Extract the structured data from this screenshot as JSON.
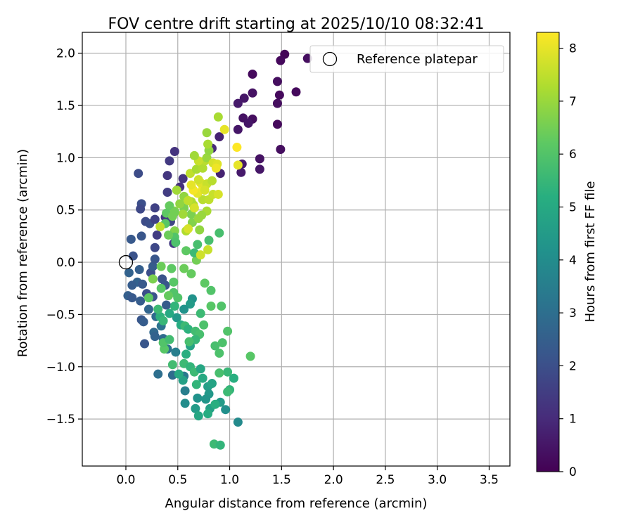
{
  "chart_data": {
    "type": "scatter",
    "title": "FOV centre drift starting at 2025/10/10 08:32:41",
    "xlabel": "Angular distance from reference (arcmin)",
    "ylabel": "Rotation from reference (arcmin)",
    "xlim": [
      -0.42,
      3.7
    ],
    "ylim": [
      -1.95,
      2.2
    ],
    "xticks": [
      0.0,
      0.5,
      1.0,
      1.5,
      2.0,
      2.5,
      3.0,
      3.5
    ],
    "xtick_labels": [
      "0.0",
      "0.5",
      "1.0",
      "1.5",
      "2.0",
      "2.5",
      "3.0",
      "3.5"
    ],
    "yticks": [
      -1.5,
      -1.0,
      -0.5,
      0.0,
      0.5,
      1.0,
      1.5,
      2.0
    ],
    "ytick_labels": [
      "−1.5",
      "−1.0",
      "−0.5",
      "0.0",
      "0.5",
      "1.0",
      "1.5",
      "2.0"
    ],
    "grid": true,
    "legend": {
      "position": "top-right",
      "entries": [
        "Reference platepar"
      ]
    },
    "reference_point": {
      "x": 0.0,
      "y": 0.0
    },
    "colorbar": {
      "label": "Hours from first FF file",
      "min": 0,
      "max": 8.3,
      "ticks": [
        0,
        1,
        2,
        3,
        4,
        5,
        6,
        7,
        8
      ],
      "tick_labels": [
        "0",
        "1",
        "2",
        "3",
        "4",
        "5",
        "6",
        "7",
        "8"
      ],
      "colormap": "viridis"
    },
    "points": [
      [
        1.53,
        1.99,
        0.1
      ],
      [
        1.49,
        1.93,
        0.2
      ],
      [
        1.75,
        1.95,
        0.3
      ],
      [
        1.22,
        1.8,
        0.2
      ],
      [
        1.46,
        1.73,
        0.3
      ],
      [
        1.64,
        1.63,
        0.2
      ],
      [
        1.22,
        1.62,
        0.4
      ],
      [
        1.48,
        1.6,
        0.2
      ],
      [
        1.14,
        1.57,
        0.5
      ],
      [
        1.08,
        1.52,
        0.6
      ],
      [
        1.46,
        1.52,
        0.3
      ],
      [
        1.13,
        1.38,
        0.4
      ],
      [
        1.22,
        1.37,
        0.3
      ],
      [
        1.18,
        1.33,
        0.5
      ],
      [
        1.46,
        1.32,
        0.2
      ],
      [
        1.08,
        1.27,
        0.5
      ],
      [
        0.9,
        1.2,
        0.8
      ],
      [
        0.83,
        1.09,
        1.0
      ],
      [
        1.49,
        1.08,
        0.3
      ],
      [
        0.47,
        1.06,
        1.2
      ],
      [
        1.29,
        0.99,
        0.4
      ],
      [
        0.42,
        0.97,
        1.4
      ],
      [
        1.12,
        0.94,
        0.6
      ],
      [
        1.29,
        0.89,
        0.5
      ],
      [
        0.12,
        0.85,
        1.9
      ],
      [
        1.11,
        0.86,
        0.6
      ],
      [
        0.4,
        0.83,
        1.3
      ],
      [
        0.91,
        0.85,
        0.8
      ],
      [
        0.55,
        0.8,
        1.2
      ],
      [
        0.52,
        0.72,
        1.1
      ],
      [
        0.4,
        0.67,
        1.5
      ],
      [
        0.15,
        0.56,
        2.0
      ],
      [
        0.14,
        0.51,
        1.8
      ],
      [
        0.28,
        0.52,
        1.6
      ],
      [
        0.38,
        0.43,
        1.3
      ],
      [
        0.19,
        0.39,
        1.9
      ],
      [
        0.23,
        0.37,
        2.0
      ],
      [
        0.28,
        0.41,
        1.6
      ],
      [
        0.43,
        0.39,
        1.7
      ],
      [
        0.3,
        0.26,
        1.5
      ],
      [
        0.15,
        0.25,
        2.2
      ],
      [
        0.05,
        0.22,
        2.3
      ],
      [
        0.46,
        0.18,
        1.4
      ],
      [
        0.28,
        0.14,
        1.8
      ],
      [
        0.07,
        0.06,
        2.1
      ],
      [
        0.03,
        -0.1,
        2.6
      ],
      [
        0.13,
        -0.07,
        2.5
      ],
      [
        0.24,
        -0.1,
        2.0
      ],
      [
        0.26,
        -0.04,
        2.4
      ],
      [
        0.28,
        0.03,
        2.2
      ],
      [
        0.11,
        -0.19,
        2.6
      ],
      [
        0.16,
        -0.21,
        2.3
      ],
      [
        0.06,
        -0.22,
        2.4
      ],
      [
        0.35,
        -0.16,
        2.1
      ],
      [
        0.38,
        -0.22,
        2.2
      ],
      [
        0.02,
        -0.32,
        2.5
      ],
      [
        0.06,
        -0.34,
        2.3
      ],
      [
        0.2,
        -0.3,
        2.0
      ],
      [
        0.26,
        -0.33,
        2.1
      ],
      [
        0.14,
        -0.37,
        2.4
      ],
      [
        0.22,
        -0.45,
        2.7
      ],
      [
        0.39,
        -0.41,
        2.4
      ],
      [
        0.29,
        -0.52,
        2.9
      ],
      [
        0.15,
        -0.55,
        2.2
      ],
      [
        0.17,
        -0.57,
        2.4
      ],
      [
        0.34,
        -0.61,
        3.1
      ],
      [
        0.27,
        -0.67,
        2.8
      ],
      [
        0.36,
        -0.73,
        2.9
      ],
      [
        0.28,
        -0.71,
        2.6
      ],
      [
        0.18,
        -0.78,
        2.2
      ],
      [
        0.48,
        -0.86,
        3.5
      ],
      [
        0.4,
        -0.83,
        3.1
      ],
      [
        0.31,
        -1.07,
        3.0
      ],
      [
        0.45,
        -1.08,
        2.9
      ],
      [
        0.56,
        -1.09,
        3.3
      ],
      [
        0.57,
        -1.23,
        3.5
      ],
      [
        0.57,
        -1.35,
        4.0
      ],
      [
        0.69,
        -1.3,
        4.2
      ],
      [
        0.67,
        -1.4,
        4.5
      ],
      [
        0.7,
        -1.47,
        4.9
      ],
      [
        0.81,
        -1.4,
        4.7
      ],
      [
        0.79,
        -1.45,
        5.1
      ],
      [
        0.85,
        -1.74,
        5.6
      ],
      [
        0.91,
        -1.75,
        5.4
      ],
      [
        1.08,
        -1.53,
        3.9
      ],
      [
        0.96,
        -1.41,
        4.1
      ],
      [
        0.91,
        -1.34,
        4.5
      ],
      [
        0.86,
        -1.36,
        5.2
      ],
      [
        1.0,
        -1.22,
        5.4
      ],
      [
        0.98,
        -1.24,
        5.6
      ],
      [
        1.04,
        -1.11,
        5.2
      ],
      [
        0.98,
        -1.05,
        5.5
      ],
      [
        0.9,
        -1.06,
        5.8
      ],
      [
        0.9,
        -0.87,
        5.9
      ],
      [
        0.86,
        -0.8,
        5.8
      ],
      [
        0.93,
        -0.77,
        5.9
      ],
      [
        0.98,
        -0.66,
        6.0
      ],
      [
        1.2,
        -0.9,
        6.1
      ],
      [
        0.92,
        -0.42,
        6.0
      ],
      [
        0.82,
        -0.42,
        6.1
      ],
      [
        0.82,
        -0.27,
        6.0
      ],
      [
        0.76,
        -0.2,
        6.2
      ],
      [
        0.63,
        -0.11,
        6.3
      ],
      [
        0.56,
        -0.06,
        6.4
      ],
      [
        0.68,
        0.02,
        6.5
      ],
      [
        0.44,
        -0.06,
        6.2
      ],
      [
        0.34,
        -0.04,
        6.4
      ],
      [
        0.26,
        -0.16,
        6.6
      ],
      [
        0.34,
        -0.25,
        6.1
      ],
      [
        0.46,
        -0.19,
        6.1
      ],
      [
        0.46,
        -0.29,
        6.0
      ],
      [
        0.41,
        -0.32,
        6.3
      ],
      [
        0.5,
        -0.34,
        6.0
      ],
      [
        0.64,
        -0.35,
        4.2
      ],
      [
        0.62,
        -0.4,
        4.5
      ],
      [
        0.56,
        -0.45,
        4.2
      ],
      [
        0.49,
        -0.53,
        4.4
      ],
      [
        0.42,
        -0.49,
        5.0
      ],
      [
        0.33,
        -0.52,
        5.3
      ],
      [
        0.36,
        -0.56,
        5.5
      ],
      [
        0.53,
        -0.6,
        5.1
      ],
      [
        0.57,
        -0.61,
        5.6
      ],
      [
        0.6,
        -0.64,
        5.3
      ],
      [
        0.67,
        -0.66,
        5.7
      ],
      [
        0.75,
        -0.6,
        5.9
      ],
      [
        0.71,
        -0.69,
        5.8
      ],
      [
        0.67,
        -0.74,
        5.5
      ],
      [
        0.62,
        -0.8,
        4.8
      ],
      [
        0.58,
        -0.88,
        5.2
      ],
      [
        0.56,
        -0.97,
        5.6
      ],
      [
        0.62,
        -1.0,
        5.4
      ],
      [
        0.66,
        -1.05,
        5.6
      ],
      [
        0.72,
        -1.02,
        4.9
      ],
      [
        0.74,
        -1.11,
        5.0
      ],
      [
        0.68,
        -1.17,
        5.4
      ],
      [
        0.79,
        -1.19,
        4.6
      ],
      [
        0.83,
        -1.16,
        4.8
      ],
      [
        0.8,
        -1.26,
        4.4
      ],
      [
        0.77,
        -1.31,
        4.3
      ],
      [
        0.55,
        -1.13,
        4.7
      ],
      [
        0.51,
        -1.07,
        5.0
      ],
      [
        0.45,
        -0.98,
        5.7
      ],
      [
        0.37,
        -0.83,
        6.1
      ],
      [
        0.36,
        -0.77,
        6.0
      ],
      [
        0.42,
        -0.74,
        5.7
      ],
      [
        0.61,
        -0.76,
        5.8
      ],
      [
        0.22,
        -0.34,
        6.2
      ],
      [
        0.31,
        -0.45,
        5.6
      ],
      [
        0.47,
        -0.42,
        5.4
      ],
      [
        0.72,
        -0.49,
        5.6
      ],
      [
        0.58,
        0.11,
        6.2
      ],
      [
        0.66,
        0.09,
        5.6
      ],
      [
        0.69,
        0.17,
        5.8
      ],
      [
        0.8,
        0.21,
        5.8
      ],
      [
        0.9,
        0.28,
        5.8
      ],
      [
        0.72,
        0.07,
        7.7
      ],
      [
        0.79,
        0.12,
        7.6
      ],
      [
        0.58,
        0.3,
        7.3
      ],
      [
        0.64,
        0.38,
        6.7
      ],
      [
        0.63,
        0.46,
        6.6
      ],
      [
        0.71,
        0.31,
        6.9
      ],
      [
        0.7,
        0.42,
        7.0
      ],
      [
        0.78,
        0.49,
        7.2
      ],
      [
        0.56,
        0.52,
        6.6
      ],
      [
        0.47,
        0.49,
        6.8
      ],
      [
        0.42,
        0.54,
        6.3
      ],
      [
        0.39,
        0.47,
        6.2
      ],
      [
        0.38,
        0.37,
        6.1
      ],
      [
        0.47,
        0.3,
        6.7
      ],
      [
        0.47,
        0.24,
        6.0
      ],
      [
        0.48,
        0.19,
        5.9
      ],
      [
        0.33,
        0.34,
        7.5
      ],
      [
        0.41,
        0.26,
        6.4
      ],
      [
        0.6,
        0.32,
        7.8
      ],
      [
        0.55,
        0.46,
        7.1
      ],
      [
        0.65,
        0.55,
        7.4
      ],
      [
        0.52,
        0.56,
        6.9
      ],
      [
        0.63,
        0.58,
        7.3
      ],
      [
        0.74,
        0.6,
        7.4
      ],
      [
        0.8,
        0.6,
        7.5
      ],
      [
        0.84,
        0.65,
        7.6
      ],
      [
        0.89,
        0.65,
        7.8
      ],
      [
        0.69,
        0.66,
        8.0
      ],
      [
        0.74,
        0.7,
        8.1
      ],
      [
        0.65,
        0.69,
        8.2
      ],
      [
        0.63,
        0.74,
        8.0
      ],
      [
        0.72,
        0.76,
        7.9
      ],
      [
        0.78,
        0.75,
        7.6
      ],
      [
        0.83,
        0.78,
        7.4
      ],
      [
        0.76,
        0.69,
        7.8
      ],
      [
        0.7,
        0.79,
        7.7
      ],
      [
        0.62,
        0.85,
        7.5
      ],
      [
        0.68,
        0.89,
        7.2
      ],
      [
        0.74,
        0.9,
        7.3
      ],
      [
        0.76,
        0.97,
        7.4
      ],
      [
        0.7,
        0.97,
        7.6
      ],
      [
        0.66,
        1.02,
        7.1
      ],
      [
        0.78,
        1.0,
        7.0
      ],
      [
        0.84,
        0.95,
        7.8
      ],
      [
        0.88,
        0.94,
        7.9
      ],
      [
        0.87,
        0.9,
        8.1
      ],
      [
        1.07,
        1.1,
        8.3
      ],
      [
        1.08,
        0.93,
        8.0
      ],
      [
        0.8,
        1.07,
        6.9
      ],
      [
        0.79,
        1.13,
        7.2
      ],
      [
        0.78,
        1.24,
        7.0
      ],
      [
        0.89,
        1.39,
        7.2
      ],
      [
        0.95,
        1.27,
        8.0
      ],
      [
        0.49,
        0.69,
        7.1
      ],
      [
        0.47,
        0.48,
        6.5
      ],
      [
        0.45,
        0.44,
        6.5
      ],
      [
        0.56,
        0.63,
        6.9
      ],
      [
        0.6,
        0.59,
        7.5
      ],
      [
        0.66,
        0.52,
        7.8
      ],
      [
        0.73,
        0.45,
        7.0
      ]
    ]
  }
}
